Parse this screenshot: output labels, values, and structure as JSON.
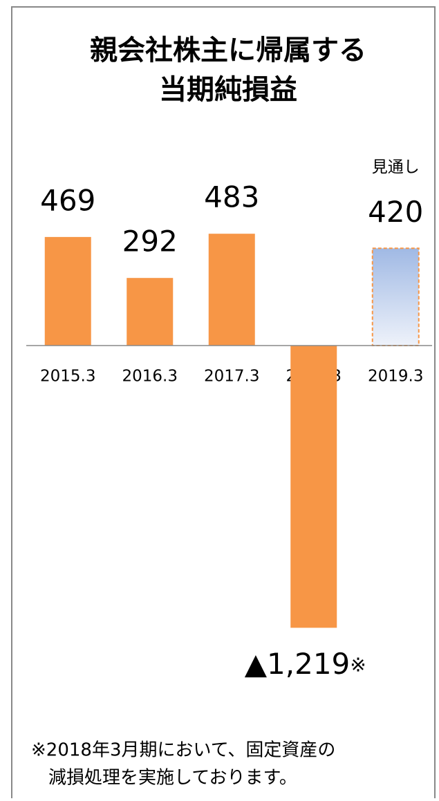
{
  "chart_data": {
    "type": "bar",
    "title": [
      "親会社株主に帰属する",
      "当期純損益"
    ],
    "categories": [
      "2015.3",
      "2016.3",
      "2017.3",
      "2018.3",
      "2019.3"
    ],
    "values": [
      469,
      292,
      483,
      -1219,
      420
    ],
    "value_labels": [
      "469",
      "292",
      "483",
      "▲1,219",
      "420"
    ],
    "color": "#f79646",
    "forecast": {
      "category": 4,
      "label": "見通し",
      "color_top": "#a0b9e4",
      "color_bottom": "#eef2fa"
    },
    "annotations": [
      {
        "category": 3,
        "text": "※"
      }
    ],
    "ylim": [
      -1300,
      600
    ],
    "footnote": [
      "※2018年3月期において、固定資産の",
      "減損処理を実施しております。"
    ]
  }
}
